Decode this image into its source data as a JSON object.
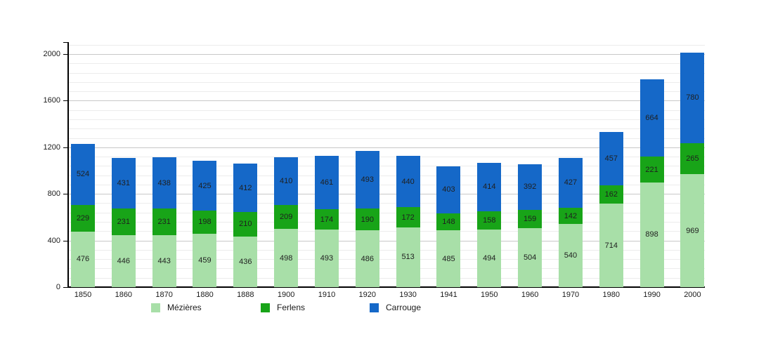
{
  "chart_data": {
    "type": "bar",
    "stacked": true,
    "title": "",
    "xlabel": "",
    "ylabel": "",
    "categories": [
      "1850",
      "1860",
      "1870",
      "1880",
      "1888",
      "1900",
      "1910",
      "1920",
      "1930",
      "1941",
      "1950",
      "1960",
      "1970",
      "1980",
      "1990",
      "2000"
    ],
    "series": [
      {
        "name": "Mézières",
        "color": "#a8dfa8",
        "values": [
          476,
          446,
          443,
          459,
          436,
          498,
          493,
          486,
          513,
          485,
          494,
          504,
          540,
          714,
          898,
          969
        ]
      },
      {
        "name": "Ferlens",
        "color": "#18a418",
        "values": [
          229,
          231,
          231,
          198,
          210,
          209,
          174,
          190,
          172,
          148,
          158,
          159,
          142,
          162,
          221,
          265
        ]
      },
      {
        "name": "Carrouge",
        "color": "#1568c8",
        "values": [
          524,
          431,
          438,
          425,
          412,
          410,
          461,
          493,
          440,
          403,
          414,
          392,
          427,
          457,
          664,
          780
        ]
      }
    ],
    "y_ticks": [
      0,
      400,
      800,
      1200,
      1600,
      2000
    ],
    "ylim": [
      0,
      2102
    ],
    "minor_grid_step": 80,
    "major_grid_step": 400,
    "grid": "on",
    "legend_position": "bottom",
    "colors": {
      "minor_grid": "#ececec",
      "major_grid": "#c8c8c8",
      "axis": "#000000",
      "label_text": "#1f1f1f"
    }
  }
}
